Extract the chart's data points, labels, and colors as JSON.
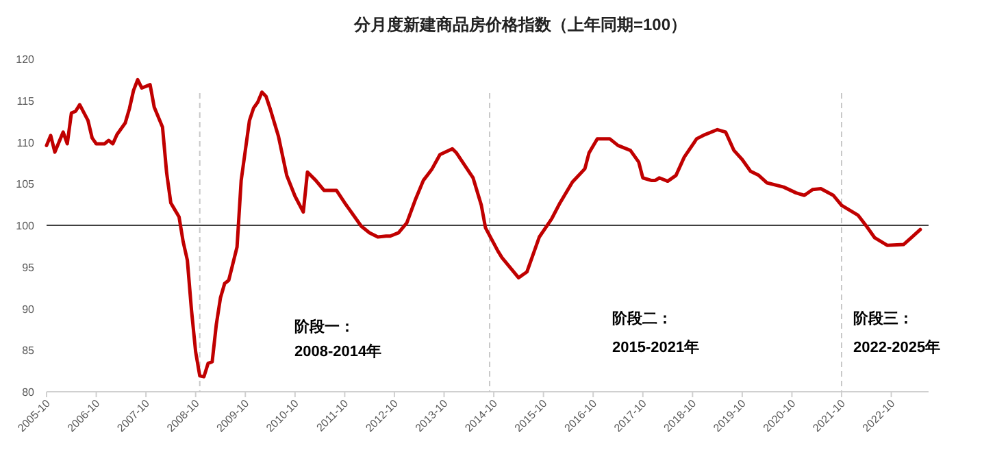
{
  "chart_data": {
    "type": "line",
    "title": "分月度新建商品房价格指数（上年同期=100）",
    "xlim": [
      "2005-10",
      "2023-07"
    ],
    "xticks": [
      {
        "value": "2005-10",
        "label": "2005-10"
      },
      {
        "value": "2006-10",
        "label": "2006-10"
      },
      {
        "value": "2007-10",
        "label": "2007-10"
      },
      {
        "value": "2008-10",
        "label": "2008-10"
      },
      {
        "value": "2009-10",
        "label": "2009-10"
      },
      {
        "value": "2010-10",
        "label": "2010-10"
      },
      {
        "value": "2011-10",
        "label": "2011-10"
      },
      {
        "value": "2012-10",
        "label": "2012-10"
      },
      {
        "value": "2013-10",
        "label": "2013-10"
      },
      {
        "value": "2014-10",
        "label": "2014-10"
      },
      {
        "value": "2015-10",
        "label": "2015-10"
      },
      {
        "value": "2016-10",
        "label": "2016-10"
      },
      {
        "value": "2017-10",
        "label": "2017-10"
      },
      {
        "value": "2018-10",
        "label": "2018-10"
      },
      {
        "value": "2019-10",
        "label": "2019-10"
      },
      {
        "value": "2020-10",
        "label": "2020-10"
      },
      {
        "value": "2021-10",
        "label": "2021-10"
      },
      {
        "value": "2022-10",
        "label": "2022-10"
      }
    ],
    "ylim": [
      80,
      120
    ],
    "yticks": [
      80,
      85,
      90,
      95,
      100,
      105,
      110,
      115,
      120
    ],
    "grid": false,
    "x": [
      "2005-10",
      "2005-11",
      "2005-12",
      "2006-02",
      "2006-03",
      "2006-04",
      "2006-05",
      "2006-06",
      "2006-08",
      "2006-09",
      "2006-10",
      "2006-12",
      "2007-01",
      "2007-02",
      "2007-03",
      "2007-05",
      "2007-06",
      "2007-07",
      "2007-08",
      "2007-09",
      "2007-11",
      "2007-12",
      "2008-02",
      "2008-03",
      "2008-04",
      "2008-06",
      "2008-07",
      "2008-08",
      "2008-09",
      "2008-10",
      "2008-11",
      "2008-12",
      "2009-01",
      "2009-02",
      "2009-03",
      "2009-04",
      "2009-05",
      "2009-06",
      "2009-08",
      "2009-09",
      "2009-11",
      "2009-12",
      "2010-01",
      "2010-02",
      "2010-03",
      "2010-04",
      "2010-06",
      "2010-08",
      "2010-10",
      "2010-12",
      "2011-01",
      "2011-03",
      "2011-05",
      "2011-06",
      "2011-08",
      "2011-10",
      "2011-12",
      "2012-02",
      "2012-04",
      "2012-06",
      "2012-08",
      "2012-09",
      "2012-11",
      "2013-01",
      "2013-03",
      "2013-05",
      "2013-07",
      "2013-09",
      "2013-12",
      "2014-01",
      "2014-05",
      "2014-07",
      "2014-08",
      "2014-11",
      "2014-12",
      "2015-04",
      "2015-06",
      "2015-09",
      "2015-12",
      "2016-02",
      "2016-05",
      "2016-08",
      "2016-09",
      "2016-11",
      "2017-02",
      "2017-04",
      "2017-07",
      "2017-09",
      "2017-10",
      "2017-12",
      "2018-01",
      "2018-02",
      "2018-04",
      "2018-06",
      "2018-08",
      "2018-11",
      "2019-01",
      "2019-04",
      "2019-06",
      "2019-08",
      "2019-10",
      "2019-12",
      "2020-02",
      "2020-04",
      "2020-08",
      "2020-11",
      "2021-01",
      "2021-03",
      "2021-05",
      "2021-08",
      "2021-10",
      "2022-02",
      "2022-04",
      "2022-06",
      "2022-09",
      "2023-01",
      "2023-03",
      "2023-05"
    ],
    "series": [
      {
        "color": "#c00000",
        "values": [
          109.6,
          110.8,
          108.8,
          111.2,
          109.8,
          113.5,
          113.7,
          114.5,
          112.6,
          110.5,
          109.8,
          109.8,
          110.2,
          109.8,
          110.9,
          112.3,
          114,
          116.2,
          117.5,
          116.5,
          116.9,
          114.2,
          111.8,
          106.3,
          102.7,
          101,
          98,
          95.8,
          89.8,
          84.8,
          81.9,
          81.8,
          83.4,
          83.6,
          88.1,
          91.3,
          93,
          93.4,
          97.4,
          105.4,
          112.6,
          114.1,
          114.8,
          116,
          115.5,
          114,
          110.7,
          106,
          103.5,
          101.6,
          106.4,
          105.4,
          104.2,
          104.2,
          104.2,
          102.7,
          101.3,
          99.9,
          99.1,
          98.6,
          98.7,
          98.7,
          99.1,
          100.3,
          103,
          105.4,
          106.7,
          108.5,
          109.2,
          108.7,
          105.7,
          102.4,
          99.7,
          96.9,
          96.1,
          93.7,
          94.4,
          98.6,
          100.8,
          102.7,
          105.2,
          106.8,
          108.7,
          110.4,
          110.4,
          109.6,
          109,
          107.6,
          105.7,
          105.4,
          105.4,
          105.7,
          105.3,
          106,
          108.2,
          110.4,
          110.9,
          111.5,
          111.2,
          109,
          107.9,
          106.5,
          106,
          105.1,
          104.6,
          103.9,
          103.6,
          104.3,
          104.4,
          103.6,
          102.4,
          101.2,
          99.9,
          98.5,
          97.6,
          97.7,
          98.6,
          99.5
        ]
      }
    ],
    "ref_lines": [
      {
        "axis": "y",
        "value": 100,
        "color": "#404040",
        "line_style": "solid"
      },
      {
        "axis": "x",
        "value": "2008-11",
        "color": "#c8c8c8",
        "line_style": "dashed"
      },
      {
        "axis": "x",
        "value": "2014-09",
        "color": "#c8c8c8",
        "line_style": "dashed"
      },
      {
        "axis": "x",
        "value": "2021-10",
        "color": "#c8c8c8",
        "line_style": "dashed"
      }
    ],
    "annotations": [
      "阶段一：",
      "2008-2014年",
      "阶段二：",
      "2015-2021年",
      "阶段三：",
      "2022-2025年"
    ]
  }
}
